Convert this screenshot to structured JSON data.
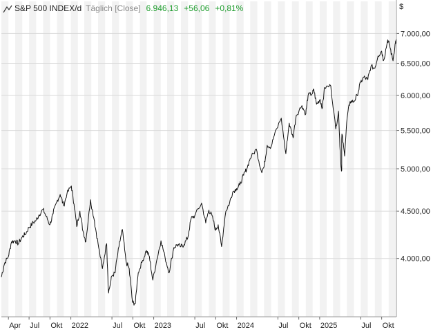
{
  "header": {
    "icon": "line-chart-icon",
    "ticker": "S&P 500 INDEX/d",
    "mode": "Täglich [Close]",
    "last_value": "6.946,13",
    "change_abs": "+56,06",
    "change_pct": "+0,81%",
    "positive_color": "#1f9d2e"
  },
  "currency": "$",
  "chart_data": {
    "type": "line",
    "log_scale": true,
    "grid": true,
    "shaded_bands": "alternating months",
    "ylim": [
      3460,
      7300
    ],
    "y_ticks": [
      {
        "value": 4000,
        "label": "4.000,00"
      },
      {
        "value": 4500,
        "label": "4.500,00"
      },
      {
        "value": 5000,
        "label": "5.000,00"
      },
      {
        "value": 5500,
        "label": "5.500,00"
      },
      {
        "value": 6000,
        "label": "6.000,00"
      },
      {
        "value": 6500,
        "label": "6.500,00"
      },
      {
        "value": 7000,
        "label": "7.000,00"
      }
    ],
    "xlim": [
      "2021-03-01",
      "2025-12-05"
    ],
    "x_ticks": [
      {
        "date": "2021-04-01",
        "label": "Apr"
      },
      {
        "date": "2021-07-01",
        "label": "Jul"
      },
      {
        "date": "2021-10-01",
        "label": "Okt"
      },
      {
        "date": "2022-01-01",
        "label": "2022"
      },
      {
        "date": "2022-07-01",
        "label": "Jul"
      },
      {
        "date": "2022-10-01",
        "label": "Okt"
      },
      {
        "date": "2023-01-01",
        "label": "2023"
      },
      {
        "date": "2023-07-01",
        "label": "Jul"
      },
      {
        "date": "2023-10-01",
        "label": "Okt"
      },
      {
        "date": "2024-01-01",
        "label": "2024"
      },
      {
        "date": "2024-07-01",
        "label": "Jul"
      },
      {
        "date": "2024-10-01",
        "label": "Okt"
      },
      {
        "date": "2025-01-01",
        "label": "2025"
      },
      {
        "date": "2025-07-01",
        "label": "Jul"
      },
      {
        "date": "2025-10-01",
        "label": "Okt"
      }
    ],
    "series": [
      {
        "color": "#111111",
        "points": [
          [
            "2021-03-01",
            3820
          ],
          [
            "2021-03-15",
            3950
          ],
          [
            "2021-04-01",
            4020
          ],
          [
            "2021-04-15",
            4170
          ],
          [
            "2021-05-01",
            4180
          ],
          [
            "2021-05-15",
            4150
          ],
          [
            "2021-06-01",
            4220
          ],
          [
            "2021-06-15",
            4250
          ],
          [
            "2021-07-01",
            4320
          ],
          [
            "2021-07-15",
            4360
          ],
          [
            "2021-08-01",
            4400
          ],
          [
            "2021-08-15",
            4460
          ],
          [
            "2021-09-01",
            4520
          ],
          [
            "2021-09-15",
            4440
          ],
          [
            "2021-10-01",
            4350
          ],
          [
            "2021-10-15",
            4470
          ],
          [
            "2021-11-01",
            4610
          ],
          [
            "2021-11-15",
            4690
          ],
          [
            "2021-12-01",
            4560
          ],
          [
            "2021-12-15",
            4700
          ],
          [
            "2022-01-03",
            4790
          ],
          [
            "2022-01-15",
            4580
          ],
          [
            "2022-01-27",
            4330
          ],
          [
            "2022-02-10",
            4500
          ],
          [
            "2022-02-24",
            4280
          ],
          [
            "2022-03-08",
            4170
          ],
          [
            "2022-03-29",
            4630
          ],
          [
            "2022-04-15",
            4390
          ],
          [
            "2022-05-01",
            4150
          ],
          [
            "2022-05-20",
            3900
          ],
          [
            "2022-06-08",
            4150
          ],
          [
            "2022-06-16",
            3670
          ],
          [
            "2022-07-01",
            3830
          ],
          [
            "2022-07-15",
            3860
          ],
          [
            "2022-08-01",
            4120
          ],
          [
            "2022-08-16",
            4300
          ],
          [
            "2022-09-01",
            3970
          ],
          [
            "2022-09-15",
            3900
          ],
          [
            "2022-09-30",
            3585
          ],
          [
            "2022-10-12",
            3577
          ],
          [
            "2022-10-25",
            3860
          ],
          [
            "2022-11-10",
            3960
          ],
          [
            "2022-11-30",
            4080
          ],
          [
            "2022-12-13",
            4020
          ],
          [
            "2022-12-28",
            3790
          ],
          [
            "2023-01-15",
            3990
          ],
          [
            "2023-02-02",
            4180
          ],
          [
            "2023-02-20",
            4010
          ],
          [
            "2023-03-10",
            3860
          ],
          [
            "2023-03-31",
            4110
          ],
          [
            "2023-04-15",
            4140
          ],
          [
            "2023-05-01",
            4120
          ],
          [
            "2023-05-15",
            4140
          ],
          [
            "2023-06-01",
            4220
          ],
          [
            "2023-06-15",
            4420
          ],
          [
            "2023-07-01",
            4450
          ],
          [
            "2023-07-31",
            4590
          ],
          [
            "2023-08-18",
            4370
          ],
          [
            "2023-09-01",
            4510
          ],
          [
            "2023-09-15",
            4450
          ],
          [
            "2023-10-01",
            4290
          ],
          [
            "2023-10-12",
            4350
          ],
          [
            "2023-10-27",
            4120
          ],
          [
            "2023-11-15",
            4500
          ],
          [
            "2023-12-01",
            4590
          ],
          [
            "2023-12-15",
            4720
          ],
          [
            "2024-01-01",
            4760
          ],
          [
            "2024-01-15",
            4800
          ],
          [
            "2024-02-01",
            4920
          ],
          [
            "2024-02-15",
            5000
          ],
          [
            "2024-03-01",
            5130
          ],
          [
            "2024-03-28",
            5250
          ],
          [
            "2024-04-19",
            4970
          ],
          [
            "2024-05-01",
            5020
          ],
          [
            "2024-05-15",
            5300
          ],
          [
            "2024-06-01",
            5280
          ],
          [
            "2024-06-15",
            5430
          ],
          [
            "2024-07-16",
            5670
          ],
          [
            "2024-08-05",
            5190
          ],
          [
            "2024-08-20",
            5600
          ],
          [
            "2024-09-06",
            5400
          ],
          [
            "2024-09-20",
            5710
          ],
          [
            "2024-10-15",
            5850
          ],
          [
            "2024-11-01",
            5730
          ],
          [
            "2024-11-11",
            6000
          ],
          [
            "2024-11-30",
            6030
          ],
          [
            "2024-12-06",
            6090
          ],
          [
            "2024-12-18",
            5870
          ],
          [
            "2025-01-03",
            5940
          ],
          [
            "2025-01-13",
            5820
          ],
          [
            "2025-01-23",
            6120
          ],
          [
            "2025-02-19",
            6144
          ],
          [
            "2025-03-13",
            5520
          ],
          [
            "2025-03-25",
            5770
          ],
          [
            "2025-04-04",
            5070
          ],
          [
            "2025-04-08",
            4980
          ],
          [
            "2025-04-09",
            5450
          ],
          [
            "2025-04-21",
            5160
          ],
          [
            "2025-05-02",
            5680
          ],
          [
            "2025-05-15",
            5910
          ],
          [
            "2025-06-01",
            5910
          ],
          [
            "2025-06-15",
            6000
          ],
          [
            "2025-07-01",
            6200
          ],
          [
            "2025-07-15",
            6280
          ],
          [
            "2025-08-01",
            6240
          ],
          [
            "2025-08-15",
            6450
          ],
          [
            "2025-09-01",
            6420
          ],
          [
            "2025-09-15",
            6620
          ],
          [
            "2025-10-01",
            6700
          ],
          [
            "2025-10-10",
            6550
          ],
          [
            "2025-10-28",
            6890
          ],
          [
            "2025-11-05",
            6800
          ],
          [
            "2025-11-20",
            6540
          ],
          [
            "2025-12-01",
            6850
          ],
          [
            "2025-12-05",
            6870
          ]
        ]
      }
    ]
  }
}
